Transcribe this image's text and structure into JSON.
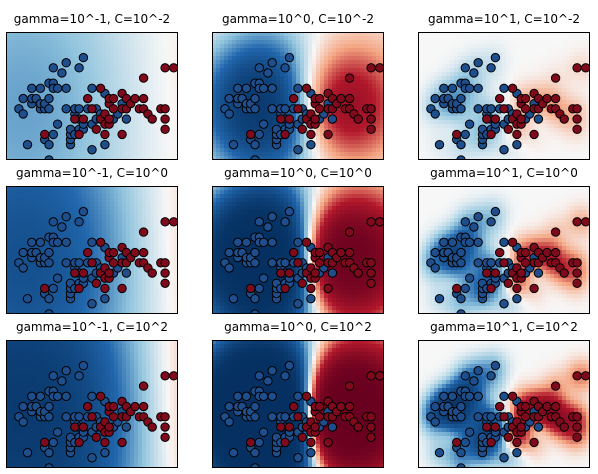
{
  "chart_data": [
    {
      "type": "heatmap",
      "title": "gamma=10^-1, C=10^-2",
      "gamma": 0.1,
      "C": 0.01,
      "x_range": [
        4.0,
        8.0
      ],
      "y_range": [
        2.0,
        4.5
      ],
      "grid": false
    },
    {
      "type": "heatmap",
      "title": "gamma=10^0, C=10^-2",
      "gamma": 1,
      "C": 0.01,
      "x_range": [
        4.0,
        8.0
      ],
      "y_range": [
        2.0,
        4.5
      ],
      "grid": false
    },
    {
      "type": "heatmap",
      "title": "gamma=10^1, C=10^-2",
      "gamma": 10,
      "C": 0.01,
      "x_range": [
        4.0,
        8.0
      ],
      "y_range": [
        2.0,
        4.5
      ],
      "grid": false
    },
    {
      "type": "heatmap",
      "title": "gamma=10^-1, C=10^0",
      "gamma": 0.1,
      "C": 1,
      "x_range": [
        4.0,
        8.0
      ],
      "y_range": [
        2.0,
        4.5
      ],
      "grid": false
    },
    {
      "type": "heatmap",
      "title": "gamma=10^0, C=10^0",
      "gamma": 1,
      "C": 1,
      "x_range": [
        4.0,
        8.0
      ],
      "y_range": [
        2.0,
        4.5
      ],
      "grid": false
    },
    {
      "type": "heatmap",
      "title": "gamma=10^1, C=10^0",
      "gamma": 10,
      "C": 1,
      "x_range": [
        4.0,
        8.0
      ],
      "y_range": [
        2.0,
        4.5
      ],
      "grid": false
    },
    {
      "type": "heatmap",
      "title": "gamma=10^-1, C=10^2",
      "gamma": 0.1,
      "C": 100,
      "x_range": [
        4.0,
        8.0
      ],
      "y_range": [
        2.0,
        4.5
      ],
      "grid": false
    },
    {
      "type": "heatmap",
      "title": "gamma=10^0, C=10^2",
      "gamma": 1,
      "C": 100,
      "x_range": [
        4.0,
        8.0
      ],
      "y_range": [
        2.0,
        4.5
      ],
      "grid": false
    },
    {
      "type": "heatmap",
      "title": "gamma=10^1, C=10^2",
      "gamma": 10,
      "C": 100,
      "x_range": [
        4.0,
        8.0
      ],
      "y_range": [
        2.0,
        4.5
      ],
      "grid": false
    }
  ],
  "scatter": {
    "class_blue": [
      [
        4.3,
        3.0
      ],
      [
        4.4,
        2.9
      ],
      [
        4.4,
        3.2
      ],
      [
        4.5,
        2.3
      ],
      [
        4.6,
        3.1
      ],
      [
        4.6,
        3.4
      ],
      [
        4.6,
        3.2
      ],
      [
        4.7,
        3.2
      ],
      [
        4.8,
        3.4
      ],
      [
        4.8,
        3.0
      ],
      [
        4.8,
        3.1
      ],
      [
        4.9,
        3.0
      ],
      [
        4.9,
        3.1
      ],
      [
        4.9,
        2.4
      ],
      [
        5.0,
        3.0
      ],
      [
        5.0,
        2.0
      ],
      [
        5.0,
        2.3
      ],
      [
        5.0,
        3.2
      ],
      [
        5.0,
        3.5
      ],
      [
        5.1,
        3.5
      ],
      [
        5.1,
        3.4
      ],
      [
        5.1,
        2.5
      ],
      [
        5.1,
        3.8
      ],
      [
        5.2,
        2.7
      ],
      [
        5.2,
        3.4
      ],
      [
        5.3,
        3.7
      ],
      [
        5.4,
        3.0
      ],
      [
        5.4,
        3.4
      ],
      [
        5.4,
        3.9
      ],
      [
        5.5,
        2.3
      ],
      [
        5.5,
        2.4
      ],
      [
        5.5,
        2.5
      ],
      [
        5.5,
        2.6
      ],
      [
        5.6,
        2.5
      ],
      [
        5.6,
        2.9
      ],
      [
        5.6,
        3.0
      ],
      [
        5.7,
        2.6
      ],
      [
        5.7,
        2.8
      ],
      [
        5.7,
        3.0
      ],
      [
        5.7,
        3.8
      ],
      [
        5.8,
        2.6
      ],
      [
        5.8,
        2.7
      ],
      [
        5.8,
        4.0
      ],
      [
        5.9,
        3.0
      ],
      [
        6.0,
        2.2
      ],
      [
        6.0,
        2.7
      ],
      [
        6.0,
        3.4
      ],
      [
        6.1,
        2.8
      ],
      [
        6.1,
        3.0
      ],
      [
        6.2,
        2.9
      ],
      [
        6.3,
        2.3
      ],
      [
        6.3,
        3.3
      ],
      [
        6.5,
        2.8
      ],
      [
        6.6,
        2.9
      ],
      [
        6.7,
        3.1
      ],
      [
        6.8,
        2.8
      ]
    ],
    "class_red": [
      [
        4.9,
        2.5
      ],
      [
        5.6,
        2.8
      ],
      [
        5.7,
        2.5
      ],
      [
        5.8,
        2.8
      ],
      [
        5.9,
        3.2
      ],
      [
        6.0,
        3.0
      ],
      [
        6.1,
        2.6
      ],
      [
        6.2,
        2.8
      ],
      [
        6.2,
        3.4
      ],
      [
        6.3,
        2.5
      ],
      [
        6.3,
        2.7
      ],
      [
        6.3,
        2.9
      ],
      [
        6.4,
        2.7
      ],
      [
        6.4,
        2.8
      ],
      [
        6.4,
        3.1
      ],
      [
        6.4,
        3.2
      ],
      [
        6.5,
        3.0
      ],
      [
        6.5,
        3.2
      ],
      [
        6.7,
        2.5
      ],
      [
        6.7,
        3.0
      ],
      [
        6.7,
        3.3
      ],
      [
        6.8,
        3.0
      ],
      [
        6.8,
        3.2
      ],
      [
        6.9,
        3.1
      ],
      [
        7.0,
        3.2
      ],
      [
        7.1,
        3.0
      ],
      [
        7.2,
        3.0
      ],
      [
        7.2,
        3.2
      ],
      [
        7.2,
        3.6
      ],
      [
        7.3,
        2.9
      ],
      [
        7.4,
        2.8
      ],
      [
        7.6,
        3.0
      ],
      [
        7.7,
        2.6
      ],
      [
        7.7,
        2.8
      ],
      [
        7.7,
        3.0
      ],
      [
        7.7,
        3.8
      ],
      [
        7.9,
        3.8
      ]
    ],
    "blue_color": "#1f4e8c",
    "red_color": "#7f0a1c"
  },
  "colormap": "RdBu",
  "colors": {
    "red_end": "#67001f",
    "blue_end": "#053061",
    "mid": "#f7f7f7"
  }
}
